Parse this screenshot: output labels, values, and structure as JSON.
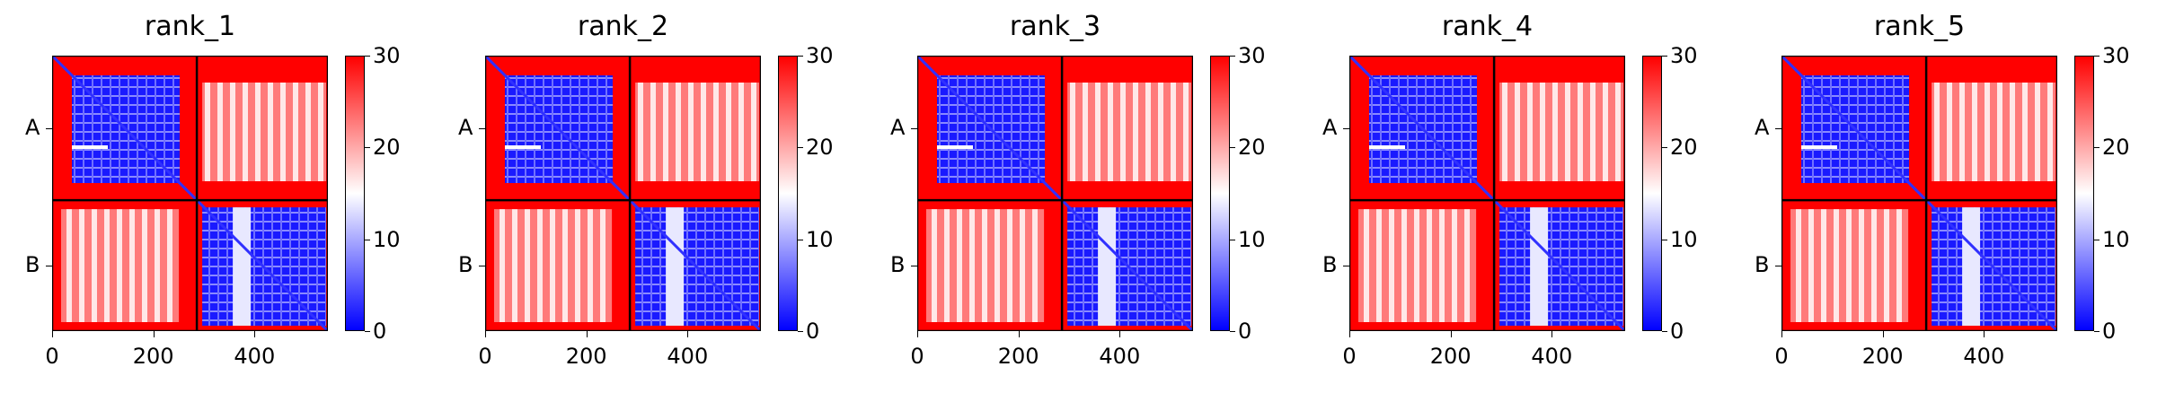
{
  "chart_data": [
    {
      "type": "heatmap",
      "title": "rank_1",
      "y_tick_labels": [
        "A",
        "B"
      ],
      "x_ticks": [
        0,
        200,
        400
      ],
      "x_range": [
        0,
        545
      ],
      "chain_boundary": 286,
      "colorbar_ticks": [
        0,
        10,
        20,
        30
      ],
      "colorbar_range": [
        0,
        30
      ],
      "colormap": [
        "#0000ff",
        "#ffffff",
        "#ff0000"
      ]
    },
    {
      "type": "heatmap",
      "title": "rank_2",
      "y_tick_labels": [
        "A",
        "B"
      ],
      "x_ticks": [
        0,
        200,
        400
      ],
      "x_range": [
        0,
        545
      ],
      "chain_boundary": 286,
      "colorbar_ticks": [
        0,
        10,
        20,
        30
      ],
      "colorbar_range": [
        0,
        30
      ],
      "colormap": [
        "#0000ff",
        "#ffffff",
        "#ff0000"
      ]
    },
    {
      "type": "heatmap",
      "title": "rank_3",
      "y_tick_labels": [
        "A",
        "B"
      ],
      "x_ticks": [
        0,
        200,
        400
      ],
      "x_range": [
        0,
        545
      ],
      "chain_boundary": 286,
      "colorbar_ticks": [
        0,
        10,
        20,
        30
      ],
      "colorbar_range": [
        0,
        30
      ],
      "colormap": [
        "#0000ff",
        "#ffffff",
        "#ff0000"
      ]
    },
    {
      "type": "heatmap",
      "title": "rank_4",
      "y_tick_labels": [
        "A",
        "B"
      ],
      "x_ticks": [
        0,
        200,
        400
      ],
      "x_range": [
        0,
        545
      ],
      "chain_boundary": 286,
      "colorbar_ticks": [
        0,
        10,
        20,
        30
      ],
      "colorbar_range": [
        0,
        30
      ],
      "colormap": [
        "#0000ff",
        "#ffffff",
        "#ff0000"
      ]
    },
    {
      "type": "heatmap",
      "title": "rank_5",
      "y_tick_labels": [
        "A",
        "B"
      ],
      "x_ticks": [
        0,
        200,
        400
      ],
      "x_range": [
        0,
        545
      ],
      "chain_boundary": 286,
      "colorbar_ticks": [
        0,
        10,
        20,
        30
      ],
      "colorbar_range": [
        0,
        30
      ],
      "colormap": [
        "#0000ff",
        "#ffffff",
        "#ff0000"
      ]
    }
  ]
}
